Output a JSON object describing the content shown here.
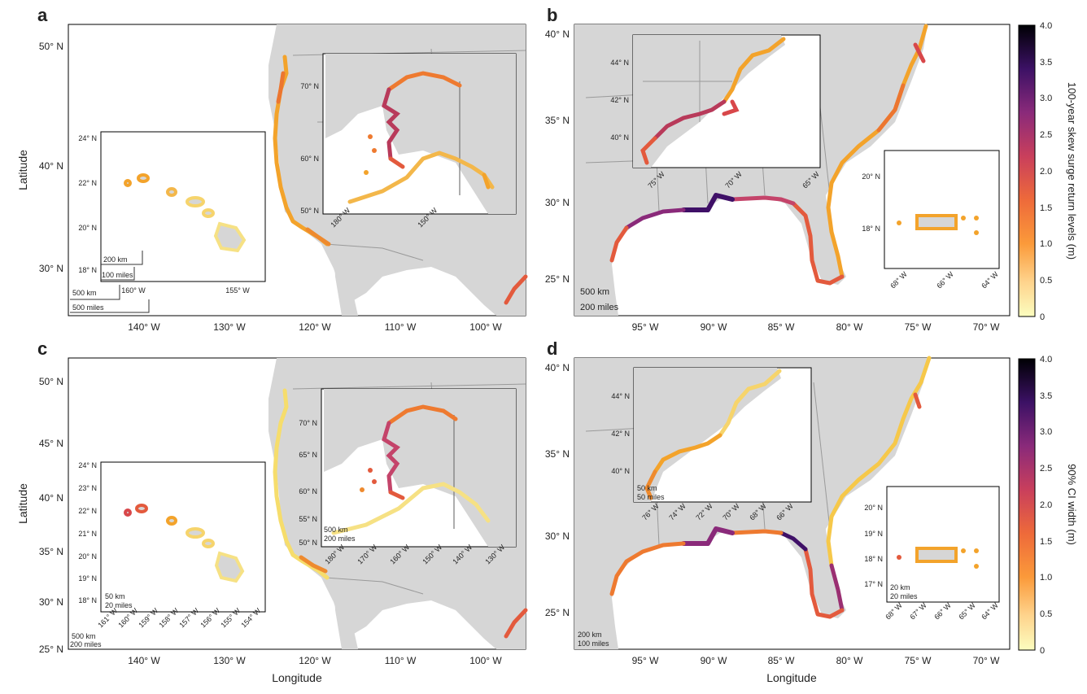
{
  "axis_labels": {
    "latitude": "Latitude",
    "longitude": "Longitude"
  },
  "colors": {
    "land": "#d6d6d6",
    "water": "#ffffff",
    "border": "#9a9a9a",
    "colormap": [
      "#fcfdbf",
      "#feb078",
      "#f1605d",
      "#b73779",
      "#721f81",
      "#2c115f",
      "#000004"
    ]
  },
  "colorbars": [
    {
      "label": "100-year skew surge return levels (m)",
      "ticks": [
        "0",
        "0.5",
        "1.0",
        "1.5",
        "2.0",
        "2.5",
        "3.0",
        "3.5",
        "4.0"
      ]
    },
    {
      "label": "90% CI width (m)",
      "ticks": [
        "0",
        "0.5",
        "1.0",
        "1.5",
        "2.0",
        "2.5",
        "3.0",
        "3.5",
        "4.0"
      ]
    }
  ],
  "panels": {
    "a": {
      "letter": "a",
      "lat_ticks": [
        "50° N",
        "40° N",
        "30° N"
      ],
      "lon_ticks": [
        "140° W",
        "130° W",
        "120° W",
        "110° W",
        "100° W"
      ],
      "scale_bar": [
        "500 km",
        "500 miles"
      ],
      "inset_hawaii": {
        "lat_ticks": [
          "24° N",
          "22° N",
          "20° N",
          "18° N"
        ],
        "lon_ticks": [
          "160° W",
          "155° W"
        ],
        "scale_bar": [
          "200 km",
          "100 miles"
        ]
      },
      "inset_alaska": {
        "lat_ticks": [
          "70° N",
          "60° N",
          "50° N"
        ],
        "lon_ticks": [
          "180° W",
          "150° W"
        ]
      }
    },
    "b": {
      "letter": "b",
      "lat_ticks": [
        "40° N",
        "35° N",
        "30° N",
        "25° N"
      ],
      "lon_ticks": [
        "95° W",
        "90° W",
        "85° W",
        "80° W",
        "75° W",
        "70° W"
      ],
      "scale_bar": [
        "500 km",
        "200 miles"
      ],
      "inset_northeast": {
        "lat_ticks": [
          "44° N",
          "42° N",
          "40° N"
        ],
        "lon_ticks": [
          "75° W",
          "70° W",
          "65° W"
        ]
      },
      "inset_puerto_rico": {
        "lat_ticks": [
          "20° N",
          "18° N"
        ],
        "lon_ticks": [
          "68° W",
          "66° W",
          "64° W"
        ]
      }
    },
    "c": {
      "letter": "c",
      "lat_ticks": [
        "50° N",
        "45° N",
        "40° N",
        "35° N",
        "30° N",
        "25° N"
      ],
      "lon_ticks": [
        "140° W",
        "130° W",
        "120° W",
        "110° W",
        "100° W"
      ],
      "scale_bar": [
        "500 km",
        "200 miles"
      ],
      "inset_hawaii": {
        "lat_ticks": [
          "24° N",
          "23° N",
          "22° N",
          "21° N",
          "20° N",
          "19° N",
          "18° N"
        ],
        "lon_ticks": [
          "161° W",
          "160° W",
          "159° W",
          "158° W",
          "157° W",
          "156° W",
          "155° W",
          "154° W"
        ],
        "scale_bar": [
          "50 km",
          "20 miles"
        ]
      },
      "inset_alaska": {
        "lat_ticks": [
          "70° N",
          "65° N",
          "60° N",
          "55° N",
          "50° N"
        ],
        "lon_ticks": [
          "180° W",
          "170° W",
          "160° W",
          "150° W",
          "140° W",
          "130° W"
        ],
        "scale_bar": [
          "500 km",
          "200 miles"
        ]
      }
    },
    "d": {
      "letter": "d",
      "lat_ticks": [
        "40° N",
        "35° N",
        "30° N",
        "25° N"
      ],
      "lon_ticks": [
        "95° W",
        "90° W",
        "85° W",
        "80° W",
        "75° W",
        "70° W"
      ],
      "scale_bar": [
        "200 km",
        "100 miles"
      ],
      "inset_northeast": {
        "lat_ticks": [
          "44° N",
          "42° N",
          "40° N"
        ],
        "lon_ticks": [
          "76° W",
          "74° W",
          "72° W",
          "70° W",
          "68° W",
          "66° W"
        ],
        "scale_bar": [
          "50 km",
          "50 miles"
        ]
      },
      "inset_puerto_rico": {
        "lat_ticks": [
          "20° N",
          "19° N",
          "18° N",
          "17° N"
        ],
        "lon_ticks": [
          "68° W",
          "67° W",
          "66° W",
          "65° W",
          "64° W"
        ],
        "scale_bar": [
          "20 km",
          "20 miles"
        ]
      }
    }
  }
}
